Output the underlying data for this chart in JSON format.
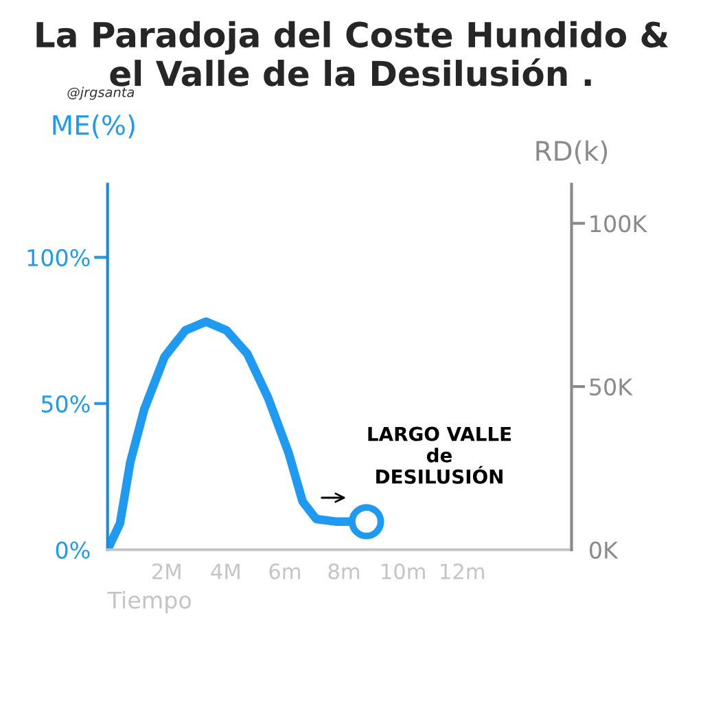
{
  "chart_data": {
    "type": "line",
    "title": "La Paradoja del Coste Hundido &\nel Valle de la Desilusión .",
    "ylabel": "ME(%)",
    "y2label": "RD(k)",
    "xlabel": "Tiempo",
    "xlim": [
      0,
      15.7
    ],
    "xticks": [
      {
        "value": 2,
        "label": "2M"
      },
      {
        "value": 4,
        "label": "4M"
      },
      {
        "value": 6,
        "label": "6m"
      },
      {
        "value": 8,
        "label": "8m"
      },
      {
        "value": 10,
        "label": "10m"
      },
      {
        "value": 12,
        "label": "12m"
      }
    ],
    "ylim": [
      0,
      125
    ],
    "yticks": [
      {
        "value": 0,
        "label": "0%"
      },
      {
        "value": 50,
        "label": "50%"
      },
      {
        "value": 100,
        "label": "100%"
      }
    ],
    "y2lim": [
      0,
      112
    ],
    "y2ticks": [
      {
        "value": 0,
        "label": "0K"
      },
      {
        "value": 50,
        "label": "50K"
      },
      {
        "value": 100,
        "label": "100K"
      }
    ],
    "series": [
      {
        "color": "#1e9bf0",
        "x": [
          0,
          0.42,
          0.77,
          1.24,
          1.93,
          2.63,
          3.33,
          4.03,
          4.73,
          5.43,
          6.13,
          6.6,
          7.06,
          7.76,
          8.35
        ],
        "values": [
          0,
          9,
          30,
          48,
          66,
          75,
          78,
          75,
          67,
          52,
          33,
          16.5,
          10.5,
          9.6,
          9.6
        ]
      },
      {
        "type": "scatter",
        "color": "#1e9bf0",
        "marker": "circle",
        "x": [
          8.76
        ],
        "values": [
          9.6
        ]
      }
    ],
    "grid": false,
    "annotations": [
      "LARGO VALLE\nde\nDESILUSIÓN",
      "@jrgsanta"
    ]
  }
}
